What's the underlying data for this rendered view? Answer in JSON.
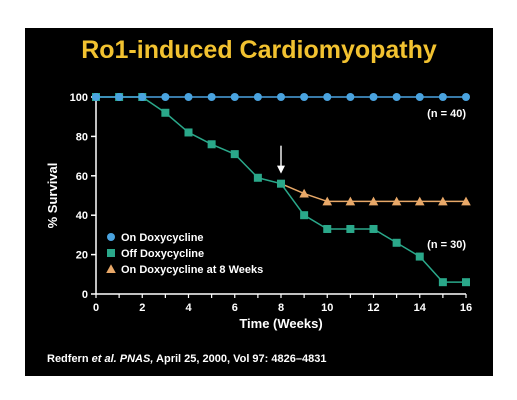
{
  "chart_data": {
    "type": "line",
    "title": "Ro1-induced Cardiomyopathy",
    "xlabel": "Time (Weeks)",
    "ylabel": "% Survival",
    "xlim": [
      0,
      16
    ],
    "ylim": [
      0,
      100
    ],
    "xticks": [
      0,
      2,
      4,
      6,
      8,
      10,
      12,
      14,
      16
    ],
    "yticks": [
      0,
      20,
      40,
      60,
      80,
      100
    ],
    "grid": false,
    "legend_position": "bottom-left",
    "series": [
      {
        "name": "On Doxycycline",
        "marker": "circle",
        "color": "#4aa3df",
        "x": [
          0,
          1,
          2,
          3,
          4,
          5,
          6,
          7,
          8,
          9,
          10,
          11,
          12,
          13,
          14,
          15,
          16
        ],
        "y": [
          100,
          100,
          100,
          100,
          100,
          100,
          100,
          100,
          100,
          100,
          100,
          100,
          100,
          100,
          100,
          100,
          100
        ]
      },
      {
        "name": "Off Doxycycline",
        "marker": "square",
        "color": "#2aa88a",
        "x": [
          0,
          1,
          2,
          3,
          4,
          5,
          6,
          7,
          8,
          9,
          10,
          11,
          12,
          13,
          14,
          15,
          16
        ],
        "y": [
          100,
          100,
          100,
          92,
          82,
          76,
          71,
          59,
          56,
          40,
          33,
          33,
          33,
          26,
          19,
          6,
          6
        ]
      },
      {
        "name": "On Doxycycline at 8 Weeks",
        "marker": "triangle",
        "color": "#e8a868",
        "x": [
          8,
          9,
          10,
          11,
          12,
          13,
          14,
          15,
          16
        ],
        "y": [
          56,
          51,
          47,
          47,
          47,
          47,
          47,
          47,
          47
        ]
      }
    ],
    "annotations": [
      {
        "text": "(n = 40)",
        "x": 16,
        "y": 100
      },
      {
        "text": "(n = 30)",
        "x": 16,
        "y": 30
      },
      {
        "text": "arrow",
        "x": 8,
        "y": 56
      }
    ]
  },
  "citation": {
    "authors": "Redfern ",
    "etal": "et al.",
    "journal": "PNAS,",
    "details": " April 25, 2000, Vol 97: 4826–4831"
  }
}
